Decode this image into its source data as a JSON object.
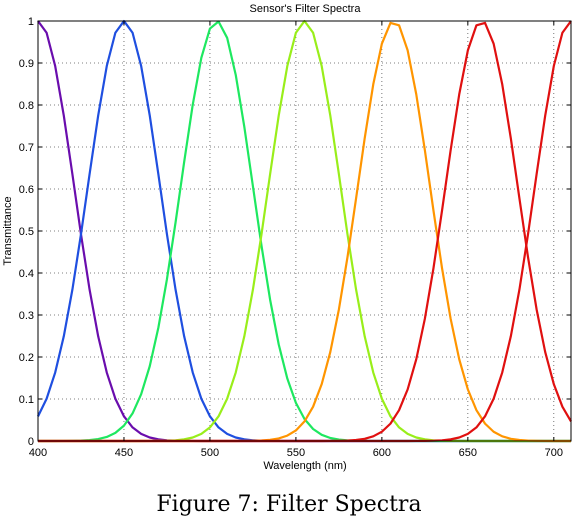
{
  "chart_data": {
    "type": "line",
    "title": "Sensor's Filter Spectra",
    "xlabel": "Wavelength (nm)",
    "ylabel": "Transmittance",
    "xlim": [
      400,
      710
    ],
    "ylim": [
      0,
      1
    ],
    "xticks": [
      400,
      450,
      500,
      550,
      600,
      650,
      700
    ],
    "yticks": [
      0,
      0.1,
      0.2,
      0.3,
      0.4,
      0.5,
      0.6,
      0.7,
      0.8,
      0.9,
      1
    ],
    "grid": true,
    "curve_shape": "gaussian",
    "series": [
      {
        "peak_nm": 400,
        "sigma_nm": 21,
        "color": "#6a0dad"
      },
      {
        "peak_nm": 450,
        "sigma_nm": 21,
        "color": "#1f4fe0"
      },
      {
        "peak_nm": 504,
        "sigma_nm": 21,
        "color": "#1ee860"
      },
      {
        "peak_nm": 555,
        "sigma_nm": 21,
        "color": "#99ee1a"
      },
      {
        "peak_nm": 607,
        "sigma_nm": 21,
        "color": "#ff9500"
      },
      {
        "peak_nm": 658,
        "sigma_nm": 21,
        "color": "#e01010"
      },
      {
        "peak_nm": 710,
        "sigma_nm": 21,
        "color": "#e01010"
      }
    ]
  },
  "caption": "Figure 7: Filter Spectra"
}
